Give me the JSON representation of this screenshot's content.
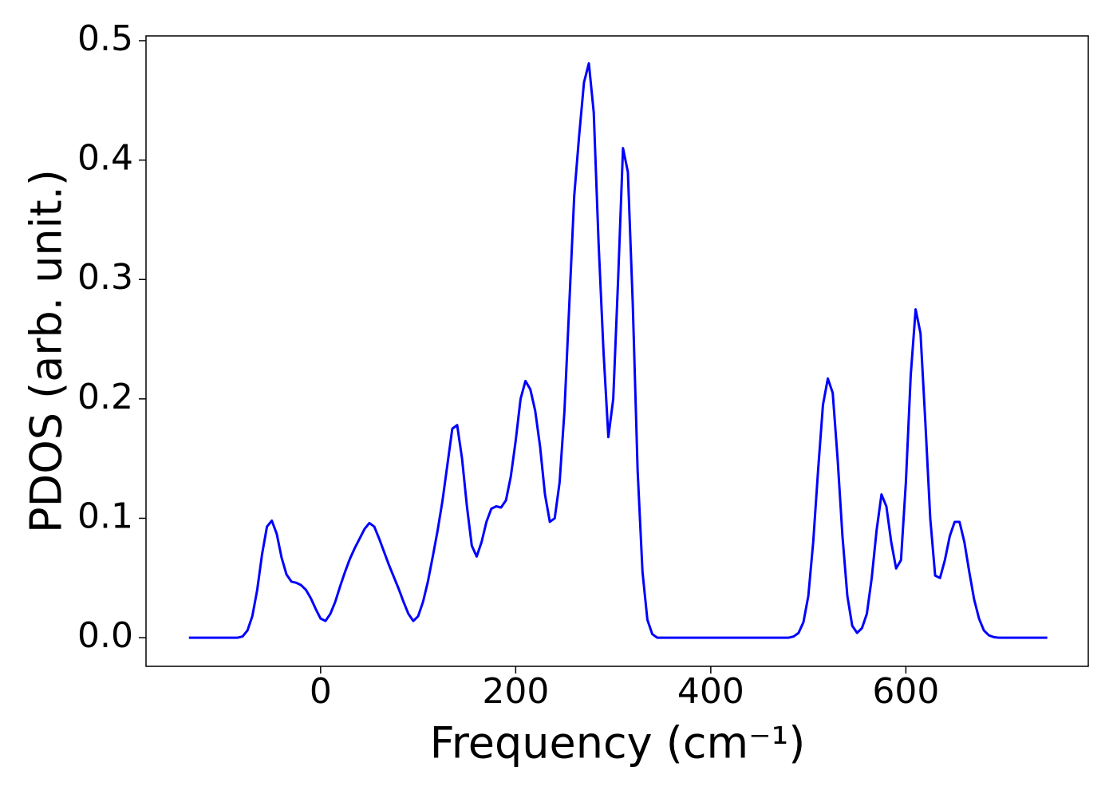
{
  "chart_data": {
    "type": "line",
    "xlabel": "Frequency (cm⁻¹)",
    "ylabel": "PDOS (arb. unit.)",
    "color": "#0000ff",
    "xlim": [
      -179,
      787
    ],
    "ylim": [
      -0.024,
      0.504
    ],
    "xticks": [
      0,
      200,
      400,
      600
    ],
    "yticks": [
      {
        "value": 0,
        "label": "0.0"
      },
      0.1,
      0.2,
      0.3,
      0.4,
      0.5
    ],
    "x": [
      -135,
      -85,
      -80,
      -75,
      -70,
      -65,
      -60,
      -55,
      -50,
      -45,
      -40,
      -35,
      -30,
      -25,
      -20,
      -15,
      -10,
      -5,
      0,
      5,
      10,
      15,
      20,
      25,
      30,
      35,
      40,
      45,
      50,
      55,
      60,
      65,
      70,
      75,
      80,
      85,
      90,
      95,
      100,
      105,
      110,
      115,
      120,
      125,
      130,
      135,
      140,
      145,
      150,
      155,
      160,
      165,
      170,
      175,
      180,
      185,
      190,
      195,
      200,
      205,
      210,
      215,
      220,
      225,
      230,
      235,
      240,
      245,
      250,
      255,
      260,
      265,
      270,
      275,
      280,
      285,
      290,
      295,
      300,
      305,
      310,
      315,
      320,
      325,
      330,
      335,
      340,
      345,
      480,
      485,
      490,
      495,
      500,
      505,
      510,
      515,
      520,
      525,
      530,
      535,
      540,
      545,
      550,
      555,
      560,
      565,
      570,
      575,
      580,
      585,
      590,
      595,
      600,
      605,
      610,
      615,
      620,
      625,
      630,
      635,
      640,
      645,
      650,
      655,
      660,
      665,
      670,
      675,
      680,
      685,
      690,
      695,
      745
    ],
    "values": [
      0,
      0,
      0.001,
      0.006,
      0.018,
      0.04,
      0.07,
      0.093,
      0.098,
      0.087,
      0.067,
      0.053,
      0.047,
      0.046,
      0.044,
      0.04,
      0.033,
      0.024,
      0.016,
      0.014,
      0.02,
      0.03,
      0.043,
      0.055,
      0.066,
      0.075,
      0.083,
      0.091,
      0.096,
      0.093,
      0.083,
      0.072,
      0.061,
      0.051,
      0.041,
      0.03,
      0.02,
      0.014,
      0.018,
      0.03,
      0.047,
      0.068,
      0.09,
      0.115,
      0.145,
      0.175,
      0.178,
      0.15,
      0.11,
      0.077,
      0.068,
      0.08,
      0.097,
      0.108,
      0.11,
      0.109,
      0.115,
      0.135,
      0.165,
      0.2,
      0.215,
      0.208,
      0.19,
      0.16,
      0.12,
      0.097,
      0.1,
      0.13,
      0.19,
      0.28,
      0.37,
      0.42,
      0.465,
      0.481,
      0.44,
      0.33,
      0.24,
      0.168,
      0.2,
      0.3,
      0.41,
      0.39,
      0.28,
      0.14,
      0.055,
      0.015,
      0.003,
      0,
      0,
      0.001,
      0.004,
      0.013,
      0.035,
      0.08,
      0.14,
      0.195,
      0.217,
      0.205,
      0.15,
      0.085,
      0.035,
      0.01,
      0.004,
      0.008,
      0.02,
      0.05,
      0.09,
      0.12,
      0.11,
      0.08,
      0.058,
      0.065,
      0.13,
      0.22,
      0.275,
      0.255,
      0.18,
      0.1,
      0.052,
      0.05,
      0.065,
      0.085,
      0.097,
      0.097,
      0.08,
      0.055,
      0.032,
      0.016,
      0.006,
      0.002,
      0.0005,
      0,
      0
    ]
  }
}
